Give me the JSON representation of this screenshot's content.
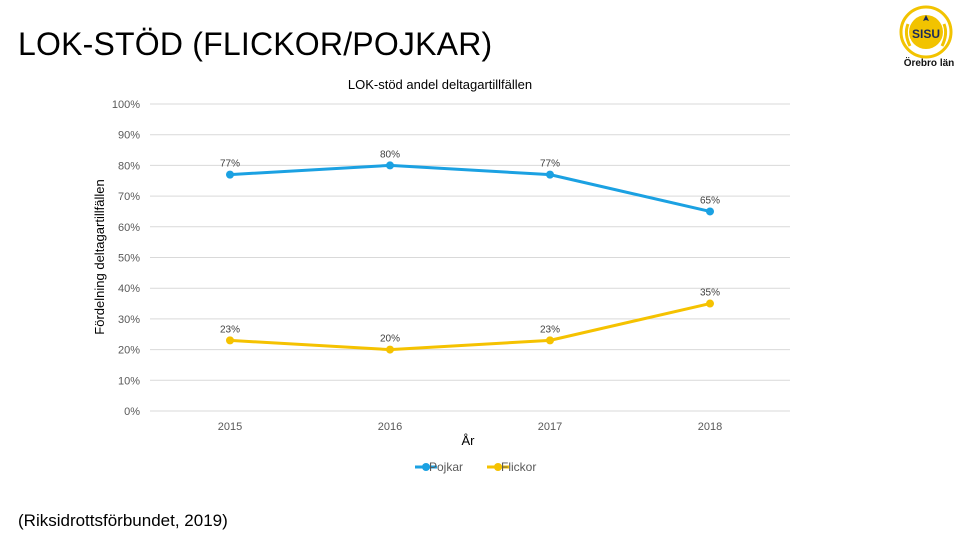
{
  "slide": {
    "title": "LOK-STÖD (FLICKOR/POJKAR)",
    "source": "(Riksidrottsförbundet, 2019)"
  },
  "logo": {
    "badge_text": "SISU",
    "region_text": "Örebro län",
    "gold_color": "#f2c300",
    "navy_color": "#1a2a5a"
  },
  "chart_data": {
    "type": "line",
    "title": "LOK-stöd andel deltagartillfällen",
    "xlabel": "År",
    "ylabel": "Fördelning deltagartillfällen",
    "categories": [
      "2015",
      "2016",
      "2017",
      "2018"
    ],
    "ylim": [
      0,
      100
    ],
    "yticks": [
      "0%",
      "10%",
      "20%",
      "30%",
      "40%",
      "50%",
      "60%",
      "70%",
      "80%",
      "90%",
      "100%"
    ],
    "grid": true,
    "legend": "bottom",
    "series": [
      {
        "name": "Pojkar",
        "values": [
          77,
          80,
          77,
          65
        ],
        "labels": [
          "77%",
          "80%",
          "77%",
          "65%"
        ],
        "color": "#1ba1e2"
      },
      {
        "name": "Flickor",
        "values": [
          23,
          20,
          23,
          35
        ],
        "labels": [
          "23%",
          "20%",
          "23%",
          "35%"
        ],
        "color": "#f5c200"
      }
    ]
  }
}
